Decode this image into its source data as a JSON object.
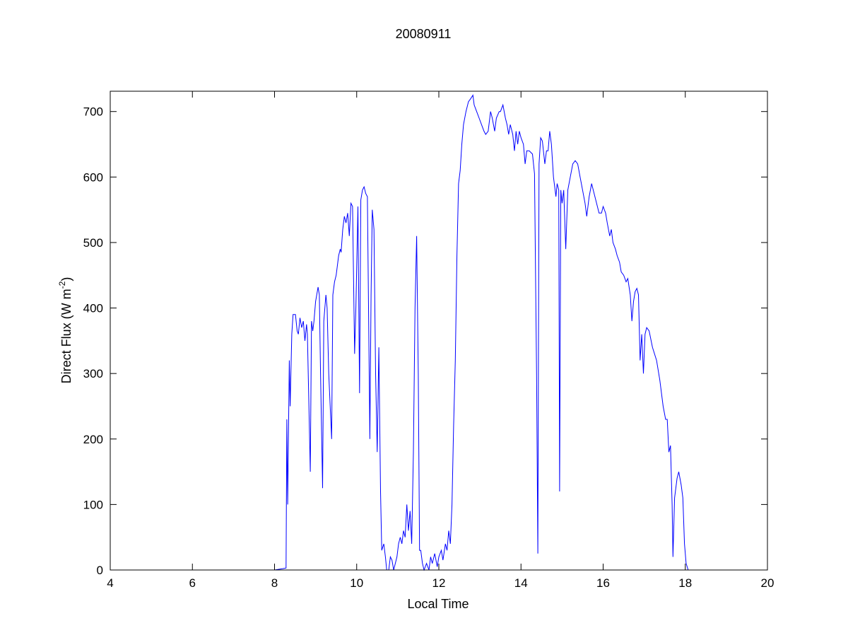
{
  "chart_data": {
    "type": "line",
    "title": "20080911",
    "xlabel": "Local Time",
    "ylabel": {
      "main": "Direct Flux (W m",
      "sup": "-2",
      "close": ")"
    },
    "xlim": [
      4,
      20
    ],
    "ylim": [
      0,
      731
    ],
    "xticks": [
      4,
      6,
      8,
      10,
      12,
      14,
      16,
      18,
      20
    ],
    "yticks": [
      0,
      100,
      200,
      300,
      400,
      500,
      600,
      700
    ],
    "grid": false,
    "legend": "none",
    "line_color": "#0000ff",
    "series": [
      {
        "x": [
          4.0,
          8.0,
          8.2,
          8.28,
          8.3,
          8.32,
          8.36,
          8.38,
          8.42,
          8.45,
          8.51,
          8.55,
          8.58,
          8.62,
          8.66,
          8.7,
          8.74,
          8.78,
          8.8,
          8.87,
          8.9,
          8.93,
          8.96,
          9.0,
          9.06,
          9.09,
          9.12,
          9.17,
          9.2,
          9.25,
          9.28,
          9.32,
          9.39,
          9.42,
          9.46,
          9.5,
          9.56,
          9.6,
          9.62,
          9.66,
          9.7,
          9.74,
          9.78,
          9.82,
          9.86,
          9.9,
          9.95,
          9.98,
          10.03,
          10.07,
          10.1,
          10.14,
          10.18,
          10.22,
          10.26,
          10.32,
          10.35,
          10.38,
          10.42,
          10.46,
          10.5,
          10.54,
          10.58,
          10.61,
          10.66,
          10.7,
          10.73,
          10.78,
          10.82,
          10.86,
          10.9,
          10.94,
          10.98,
          11.02,
          11.06,
          11.1,
          11.14,
          11.18,
          11.22,
          11.26,
          11.3,
          11.34,
          11.38,
          11.42,
          11.46,
          11.5,
          11.53,
          11.56,
          11.6,
          11.64,
          11.7,
          11.76,
          11.8,
          11.84,
          11.9,
          11.96,
          12.0,
          12.06,
          12.1,
          12.16,
          12.2,
          12.24,
          12.28,
          12.32,
          12.36,
          12.4,
          12.44,
          12.48,
          12.52,
          12.56,
          12.6,
          12.66,
          12.72,
          12.78,
          12.83,
          12.86,
          12.92,
          12.98,
          13.04,
          13.1,
          13.14,
          13.2,
          13.26,
          13.3,
          13.36,
          13.4,
          13.47,
          13.5,
          13.56,
          13.62,
          13.66,
          13.7,
          13.74,
          13.8,
          13.84,
          13.88,
          13.92,
          13.96,
          14.0,
          14.06,
          14.1,
          14.14,
          14.2,
          14.28,
          14.33,
          14.38,
          14.41,
          14.44,
          14.48,
          14.52,
          14.58,
          14.62,
          14.66,
          14.7,
          14.74,
          14.79,
          14.85,
          14.88,
          14.92,
          14.94,
          14.97,
          15.0,
          15.04,
          15.09,
          15.14,
          15.2,
          15.26,
          15.32,
          15.38,
          15.44,
          15.5,
          15.56,
          15.6,
          15.66,
          15.72,
          15.78,
          15.84,
          15.9,
          15.96,
          16.0,
          16.06,
          16.1,
          16.16,
          16.2,
          16.24,
          16.3,
          16.34,
          16.4,
          16.44,
          16.5,
          16.56,
          16.6,
          16.66,
          16.7,
          16.74,
          16.78,
          16.82,
          16.86,
          16.9,
          16.94,
          16.98,
          17.02,
          17.06,
          17.12,
          17.2,
          17.3,
          17.38,
          17.46,
          17.52,
          17.56,
          17.6,
          17.64,
          17.68,
          17.7,
          17.74,
          17.8,
          17.84,
          17.9,
          17.94,
          17.98,
          18.02,
          18.07,
          20.0
        ],
        "y": [
          0,
          0,
          2,
          3,
          230,
          100,
          320,
          250,
          360,
          390,
          390,
          365,
          360,
          385,
          370,
          380,
          350,
          375,
          360,
          150,
          380,
          365,
          380,
          410,
          432,
          420,
          300,
          125,
          380,
          420,
          400,
          300,
          200,
          420,
          440,
          450,
          480,
          490,
          485,
          520,
          540,
          530,
          545,
          510,
          560,
          555,
          330,
          400,
          555,
          270,
          565,
          580,
          585,
          575,
          570,
          200,
          420,
          550,
          520,
          300,
          180,
          340,
          120,
          30,
          40,
          20,
          0,
          0,
          20,
          15,
          0,
          10,
          20,
          40,
          50,
          40,
          60,
          50,
          100,
          60,
          90,
          40,
          180,
          400,
          510,
          300,
          30,
          30,
          10,
          0,
          10,
          0,
          20,
          10,
          25,
          5,
          20,
          30,
          15,
          40,
          30,
          60,
          40,
          100,
          220,
          320,
          480,
          590,
          610,
          650,
          680,
          700,
          715,
          720,
          725,
          710,
          700,
          690,
          680,
          670,
          665,
          670,
          700,
          690,
          670,
          690,
          700,
          700,
          710,
          690,
          680,
          665,
          680,
          665,
          640,
          670,
          650,
          670,
          660,
          650,
          620,
          640,
          640,
          635,
          605,
          300,
          25,
          620,
          660,
          655,
          620,
          640,
          640,
          670,
          650,
          600,
          570,
          590,
          580,
          120,
          580,
          560,
          580,
          490,
          580,
          600,
          620,
          625,
          620,
          600,
          580,
          560,
          540,
          570,
          590,
          575,
          560,
          545,
          545,
          555,
          545,
          530,
          510,
          520,
          500,
          490,
          480,
          470,
          455,
          450,
          440,
          445,
          420,
          380,
          410,
          425,
          430,
          420,
          320,
          360,
          300,
          360,
          370,
          365,
          340,
          320,
          290,
          250,
          230,
          230,
          180,
          190,
          100,
          20,
          110,
          140,
          150,
          130,
          110,
          40,
          10,
          0,
          0
        ]
      }
    ]
  }
}
